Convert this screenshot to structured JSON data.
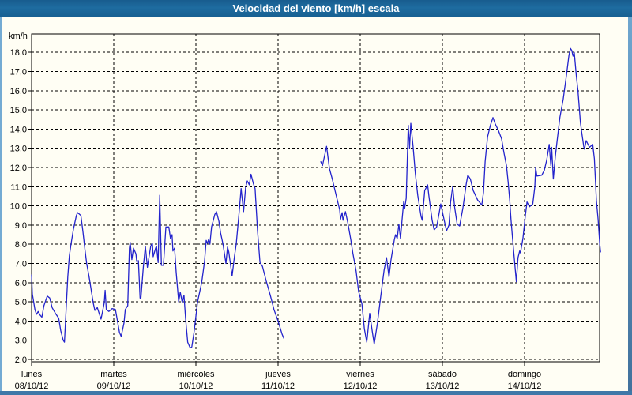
{
  "window": {
    "title": "Velocidad del viento [km/h] escala"
  },
  "colors": {
    "titlebar_bg": "#1b6497",
    "titlebar_text": "#ffffff",
    "panel_bg": "#fffef4",
    "border_light": "#74abd3",
    "border_dark": "#41719c",
    "grid": "#000000",
    "line": "#2323cc"
  },
  "chart_data": {
    "type": "line",
    "title": "Velocidad del viento [km/h] escala",
    "ylabel": "km/h",
    "xlabel": "",
    "ylim": [
      2,
      19
    ],
    "grid": "dashed-black",
    "legend": "none",
    "y_ticks": [
      {
        "value": 2,
        "label": "2,0"
      },
      {
        "value": 3,
        "label": "3,0"
      },
      {
        "value": 4,
        "label": "4,0"
      },
      {
        "value": 5,
        "label": "5,0"
      },
      {
        "value": 6,
        "label": "6,0"
      },
      {
        "value": 7,
        "label": "7,0"
      },
      {
        "value": 8,
        "label": "8,0"
      },
      {
        "value": 9,
        "label": "9,0"
      },
      {
        "value": 10,
        "label": "10,0"
      },
      {
        "value": 11,
        "label": "11,0"
      },
      {
        "value": 12,
        "label": "12,0"
      },
      {
        "value": 13,
        "label": "13,0"
      },
      {
        "value": 14,
        "label": "14,0"
      },
      {
        "value": 15,
        "label": "15,0"
      },
      {
        "value": 16,
        "label": "16,0"
      },
      {
        "value": 17,
        "label": "17,0"
      },
      {
        "value": 18,
        "label": "18,0"
      }
    ],
    "x_categories": [
      {
        "name": "lunes",
        "date": "08/10/12"
      },
      {
        "name": "martes",
        "date": "09/10/12"
      },
      {
        "name": "miércoles",
        "date": "10/10/12"
      },
      {
        "name": "jueves",
        "date": "11/10/12"
      },
      {
        "name": "viernes",
        "date": "12/10/12"
      },
      {
        "name": "sábado",
        "date": "13/10/12"
      },
      {
        "name": "domingo",
        "date": "14/10/12"
      }
    ],
    "x_unit": "days (0 = lunes 08/10/12 00:00)",
    "series": [
      {
        "name": "Velocidad del viento",
        "color": "#2323cc",
        "segments": [
          [
            [
              0.0,
              6.4
            ],
            [
              0.01,
              5.4
            ],
            [
              0.04,
              4.6
            ],
            [
              0.06,
              4.35
            ],
            [
              0.08,
              4.5
            ],
            [
              0.105,
              4.3
            ],
            [
              0.125,
              4.2
            ],
            [
              0.15,
              4.8
            ],
            [
              0.19,
              5.3
            ],
            [
              0.22,
              5.2
            ],
            [
              0.25,
              4.7
            ],
            [
              0.29,
              4.4
            ],
            [
              0.33,
              4.15
            ],
            [
              0.355,
              3.5
            ],
            [
              0.385,
              3.0
            ],
            [
              0.4,
              2.9
            ],
            [
              0.44,
              6.3
            ],
            [
              0.46,
              7.4
            ],
            [
              0.48,
              8.0
            ],
            [
              0.51,
              8.8
            ],
            [
              0.545,
              9.5
            ],
            [
              0.56,
              9.65
            ],
            [
              0.6,
              9.5
            ],
            [
              0.625,
              8.65
            ],
            [
              0.65,
              7.7
            ],
            [
              0.67,
              7.0
            ],
            [
              0.7,
              6.3
            ],
            [
              0.75,
              4.95
            ],
            [
              0.77,
              4.55
            ],
            [
              0.8,
              4.7
            ],
            [
              0.845,
              4.1
            ],
            [
              0.885,
              4.95
            ],
            [
              0.895,
              5.6
            ],
            [
              0.91,
              4.6
            ],
            [
              0.94,
              4.5
            ],
            [
              0.98,
              4.65
            ],
            [
              1.02,
              4.6
            ],
            [
              1.07,
              3.4
            ],
            [
              1.09,
              3.2
            ],
            [
              1.125,
              3.9
            ],
            [
              1.14,
              4.6
            ],
            [
              1.17,
              4.8
            ],
            [
              1.19,
              7.8
            ],
            [
              1.2,
              8.1
            ],
            [
              1.22,
              7.2
            ],
            [
              1.24,
              7.8
            ],
            [
              1.27,
              7.5
            ],
            [
              1.28,
              7.1
            ],
            [
              1.3,
              7.15
            ],
            [
              1.32,
              5.2
            ],
            [
              1.33,
              5.15
            ],
            [
              1.36,
              6.8
            ],
            [
              1.385,
              7.9
            ],
            [
              1.41,
              6.8
            ],
            [
              1.45,
              7.9
            ],
            [
              1.47,
              8.05
            ],
            [
              1.48,
              7.35
            ],
            [
              1.51,
              7.8
            ],
            [
              1.52,
              7.9
            ],
            [
              1.54,
              7.05
            ],
            [
              1.56,
              10.55
            ],
            [
              1.58,
              6.9
            ],
            [
              1.605,
              6.9
            ],
            [
              1.635,
              8.9
            ],
            [
              1.67,
              8.9
            ],
            [
              1.69,
              8.3
            ],
            [
              1.71,
              8.5
            ],
            [
              1.72,
              7.65
            ],
            [
              1.74,
              7.8
            ],
            [
              1.76,
              6.55
            ],
            [
              1.79,
              5.0
            ],
            [
              1.81,
              5.5
            ],
            [
              1.835,
              4.95
            ],
            [
              1.855,
              5.35
            ],
            [
              1.875,
              4.1
            ],
            [
              1.9,
              2.9
            ],
            [
              1.93,
              2.6
            ],
            [
              1.95,
              2.65
            ],
            [
              1.98,
              3.5
            ],
            [
              2.02,
              5.0
            ],
            [
              2.07,
              6.0
            ],
            [
              2.105,
              7.1
            ],
            [
              2.125,
              8.2
            ],
            [
              2.14,
              8.05
            ],
            [
              2.155,
              8.25
            ],
            [
              2.17,
              8.0
            ],
            [
              2.19,
              8.9
            ],
            [
              2.23,
              9.55
            ],
            [
              2.25,
              9.7
            ],
            [
              2.28,
              9.2
            ],
            [
              2.3,
              8.6
            ],
            [
              2.33,
              8.0
            ],
            [
              2.365,
              7.0
            ],
            [
              2.385,
              7.85
            ],
            [
              2.4,
              7.6
            ],
            [
              2.44,
              6.35
            ],
            [
              2.47,
              7.4
            ],
            [
              2.49,
              8.0
            ],
            [
              2.51,
              8.9
            ],
            [
              2.53,
              9.85
            ],
            [
              2.55,
              10.9
            ],
            [
              2.58,
              9.7
            ],
            [
              2.605,
              10.95
            ],
            [
              2.625,
              11.3
            ],
            [
              2.65,
              11.1
            ],
            [
              2.67,
              11.65
            ],
            [
              2.7,
              11.15
            ],
            [
              2.72,
              10.9
            ],
            [
              2.75,
              8.7
            ],
            [
              2.78,
              7.05
            ],
            [
              2.81,
              6.85
            ],
            [
              2.855,
              6.1
            ],
            [
              2.905,
              5.35
            ],
            [
              2.95,
              4.6
            ],
            [
              3.0,
              4.0
            ],
            [
              3.05,
              3.3
            ],
            [
              3.07,
              3.1
            ]
          ],
          [
            [
              3.52,
              12.3
            ],
            [
              3.54,
              12.1
            ],
            [
              3.59,
              13.1
            ],
            [
              3.625,
              11.95
            ],
            [
              3.66,
              11.4
            ],
            [
              3.71,
              10.5
            ],
            [
              3.75,
              9.8
            ],
            [
              3.76,
              9.3
            ],
            [
              3.78,
              9.65
            ],
            [
              3.79,
              9.25
            ],
            [
              3.82,
              9.7
            ],
            [
              3.85,
              9.1
            ],
            [
              3.885,
              8.25
            ],
            [
              3.91,
              7.55
            ],
            [
              3.95,
              6.6
            ],
            [
              3.98,
              5.55
            ],
            [
              4.02,
              4.9
            ],
            [
              4.05,
              3.6
            ],
            [
              4.08,
              2.9
            ],
            [
              4.115,
              4.4
            ],
            [
              4.145,
              3.5
            ],
            [
              4.17,
              2.8
            ],
            [
              4.21,
              3.9
            ],
            [
              4.25,
              5.3
            ],
            [
              4.29,
              6.65
            ],
            [
              4.32,
              7.3
            ],
            [
              4.35,
              6.3
            ],
            [
              4.375,
              7.2
            ],
            [
              4.415,
              8.25
            ],
            [
              4.43,
              8.5
            ],
            [
              4.45,
              8.3
            ],
            [
              4.47,
              9.05
            ],
            [
              4.49,
              8.3
            ],
            [
              4.51,
              9.3
            ],
            [
              4.53,
              10.25
            ],
            [
              4.54,
              9.85
            ],
            [
              4.56,
              10.4
            ],
            [
              4.585,
              14.2
            ],
            [
              4.6,
              13.0
            ],
            [
              4.615,
              14.3
            ],
            [
              4.645,
              13.0
            ],
            [
              4.67,
              11.7
            ],
            [
              4.7,
              10.55
            ],
            [
              4.74,
              9.45
            ],
            [
              4.755,
              9.25
            ],
            [
              4.785,
              10.8
            ],
            [
              4.82,
              11.1
            ],
            [
              4.835,
              10.55
            ],
            [
              4.875,
              9.25
            ],
            [
              4.9,
              8.75
            ],
            [
              4.93,
              8.9
            ],
            [
              4.96,
              9.6
            ],
            [
              4.98,
              10.1
            ],
            [
              5.01,
              9.5
            ],
            [
              5.05,
              8.7
            ],
            [
              5.08,
              9.0
            ],
            [
              5.1,
              10.2
            ],
            [
              5.125,
              11.0
            ],
            [
              5.15,
              9.9
            ],
            [
              5.18,
              9.05
            ],
            [
              5.21,
              8.95
            ],
            [
              5.25,
              9.9
            ],
            [
              5.29,
              11.15
            ],
            [
              5.31,
              11.6
            ],
            [
              5.34,
              11.4
            ],
            [
              5.375,
              10.8
            ],
            [
              5.43,
              10.3
            ],
            [
              5.48,
              10.05
            ],
            [
              5.5,
              10.7
            ],
            [
              5.52,
              12.3
            ],
            [
              5.55,
              13.6
            ],
            [
              5.585,
              14.2
            ],
            [
              5.615,
              14.6
            ],
            [
              5.645,
              14.25
            ],
            [
              5.68,
              13.95
            ],
            [
              5.72,
              13.5
            ],
            [
              5.75,
              12.75
            ],
            [
              5.78,
              12.1
            ],
            [
              5.8,
              11.25
            ],
            [
              5.82,
              10.25
            ],
            [
              5.835,
              9.3
            ],
            [
              5.855,
              8.25
            ],
            [
              5.885,
              6.8
            ],
            [
              5.9,
              6.05
            ],
            [
              5.92,
              7.3
            ],
            [
              5.94,
              7.65
            ],
            [
              5.95,
              7.55
            ],
            [
              5.98,
              8.3
            ],
            [
              6.01,
              9.5
            ],
            [
              6.03,
              10.2
            ],
            [
              6.06,
              9.95
            ],
            [
              6.1,
              10.1
            ],
            [
              6.125,
              11.0
            ],
            [
              6.135,
              12.0
            ],
            [
              6.15,
              11.55
            ],
            [
              6.21,
              11.6
            ],
            [
              6.24,
              11.85
            ],
            [
              6.27,
              12.4
            ],
            [
              6.3,
              13.2
            ],
            [
              6.32,
              12.1
            ],
            [
              6.33,
              13.05
            ],
            [
              6.35,
              11.4
            ],
            [
              6.375,
              12.6
            ],
            [
              6.395,
              13.35
            ],
            [
              6.43,
              14.6
            ],
            [
              6.47,
              15.55
            ],
            [
              6.51,
              16.8
            ],
            [
              6.54,
              17.85
            ],
            [
              6.56,
              18.2
            ],
            [
              6.575,
              18.1
            ],
            [
              6.59,
              17.8
            ],
            [
              6.605,
              18.0
            ],
            [
              6.63,
              16.8
            ],
            [
              6.65,
              16.0
            ],
            [
              6.68,
              14.35
            ],
            [
              6.7,
              13.7
            ],
            [
              6.72,
              13.1
            ],
            [
              6.73,
              12.95
            ],
            [
              6.75,
              13.4
            ],
            [
              6.79,
              13.05
            ],
            [
              6.83,
              13.2
            ],
            [
              6.85,
              12.45
            ],
            [
              6.875,
              10.25
            ],
            [
              6.895,
              9.3
            ],
            [
              6.915,
              8.0
            ],
            [
              6.925,
              7.6
            ]
          ]
        ]
      }
    ]
  }
}
